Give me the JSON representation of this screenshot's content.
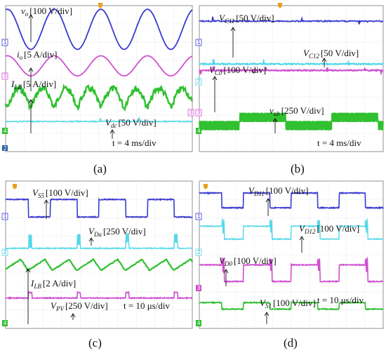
{
  "colors": {
    "grid": "#c8c8c8",
    "ch1": "#3a3ad0",
    "ch2": "#55d8e8",
    "ch3": "#d050d0",
    "ch4": "#30c030",
    "trig": "#e8a020"
  },
  "chart_data": [
    {
      "type": "line",
      "caption": "(a)",
      "time_scale": "t = 4 ms/div",
      "labels": [
        {
          "sym": "v",
          "sub": "o",
          "scale": "[100 V/div]"
        },
        {
          "sym": "i",
          "sub": "o",
          "scale": "[5 A/div]"
        },
        {
          "sym": "I",
          "sub": "LB",
          "scale": "[5 A/div]"
        },
        {
          "sym": "V",
          "sub": "dc",
          "scale": "[50 V/div]"
        }
      ],
      "channel_markers": [
        "1",
        "3",
        "3",
        "4",
        "2"
      ],
      "series": [
        {
          "name": "vo",
          "shape": "sine",
          "center_div": 1.3,
          "amplitude_div": 1.1,
          "period_div": 2.5,
          "phase_div": 0.1
        },
        {
          "name": "io",
          "shape": "sine",
          "center_div": 3.3,
          "amplitude_div": 0.55,
          "period_div": 2.5,
          "phase_div": 0.1
        },
        {
          "name": "ILB",
          "shape": "noisy-rectified-sine",
          "center_div": 5.1,
          "amplitude_div": 0.55,
          "period_div": 1.25,
          "phase_div": 0.1
        },
        {
          "name": "Vdc",
          "shape": "flat",
          "center_div": 6.35
        }
      ]
    },
    {
      "type": "line",
      "caption": "(b)",
      "time_scale": "t = 4 ms/div",
      "labels": [
        {
          "sym": "V",
          "sub": "C11",
          "scale": "[50 V/div]"
        },
        {
          "sym": "V",
          "sub": "C12",
          "scale": "[50 V/div]"
        },
        {
          "sym": "V",
          "sub": "C0",
          "scale": "[100 V/div]"
        },
        {
          "sym": "v",
          "sub": "ab",
          "scale": "[250 V/div]"
        }
      ],
      "channel_markers": [
        "1",
        "2",
        "3",
        "4"
      ],
      "series": [
        {
          "name": "VC11",
          "shape": "flat",
          "center_div": 0.85
        },
        {
          "name": "VC12",
          "shape": "flat",
          "center_div": 3.2
        },
        {
          "name": "VC0",
          "shape": "flat",
          "center_div": 3.55
        },
        {
          "name": "vab",
          "shape": "multilevel-pwm",
          "center_div": 6.35,
          "period_div": 5.0
        }
      ]
    },
    {
      "type": "line",
      "caption": "(c)",
      "time_scale": "t = 10 μs/div",
      "labels": [
        {
          "sym": "V",
          "sub": "S5",
          "scale": "[100 V/div]"
        },
        {
          "sym": "V",
          "sub": "Da",
          "scale": "[250 V/div]"
        },
        {
          "sym": "I",
          "sub": "LB",
          "scale": "[2 A/div]"
        },
        {
          "sym": "V",
          "sub": "PV",
          "scale": "[250 V/div]"
        }
      ],
      "channel_markers": [
        "1",
        "2",
        "4"
      ],
      "series": [
        {
          "name": "VS5",
          "shape": "pulse",
          "high_div": 1.0,
          "low_div": 1.95,
          "period_div": 2.6
        },
        {
          "name": "VDa",
          "shape": "spike-pulse",
          "center_div": 3.65,
          "period_div": 2.6
        },
        {
          "name": "ILB",
          "shape": "triangle",
          "center_div": 4.55,
          "amplitude_div": 0.3,
          "period_div": 1.3
        },
        {
          "name": "VPV",
          "shape": "pulse-inverted",
          "center_div": 6.35,
          "period_div": 2.6
        }
      ]
    },
    {
      "type": "line",
      "caption": "(d)",
      "time_scale": "t = 10 μs/div",
      "labels": [
        {
          "sym": "V",
          "sub": "D11",
          "scale": "[100 V/div]"
        },
        {
          "sym": "V",
          "sub": "D12",
          "scale": "[100 V/div]"
        },
        {
          "sym": "V",
          "sub": "D0",
          "scale": "[100 V/div]"
        },
        {
          "sym": "V",
          "sub": "S1",
          "scale": "[100 V/div]"
        }
      ],
      "channel_markers": [
        "1",
        "2",
        "3",
        "4"
      ],
      "series": [
        {
          "name": "VD11",
          "shape": "pulse",
          "high_div": 0.65,
          "low_div": 1.45,
          "period_div": 2.6
        },
        {
          "name": "VD12",
          "shape": "pulse-spike",
          "high_div": 2.45,
          "low_div": 3.15,
          "period_div": 2.6
        },
        {
          "name": "VD0",
          "shape": "pulse-spike",
          "high_div": 4.55,
          "low_div": 5.45,
          "period_div": 2.6
        },
        {
          "name": "VS1",
          "shape": "pulse",
          "high_div": 6.6,
          "low_div": 6.95,
          "period_div": 2.6
        }
      ]
    }
  ]
}
